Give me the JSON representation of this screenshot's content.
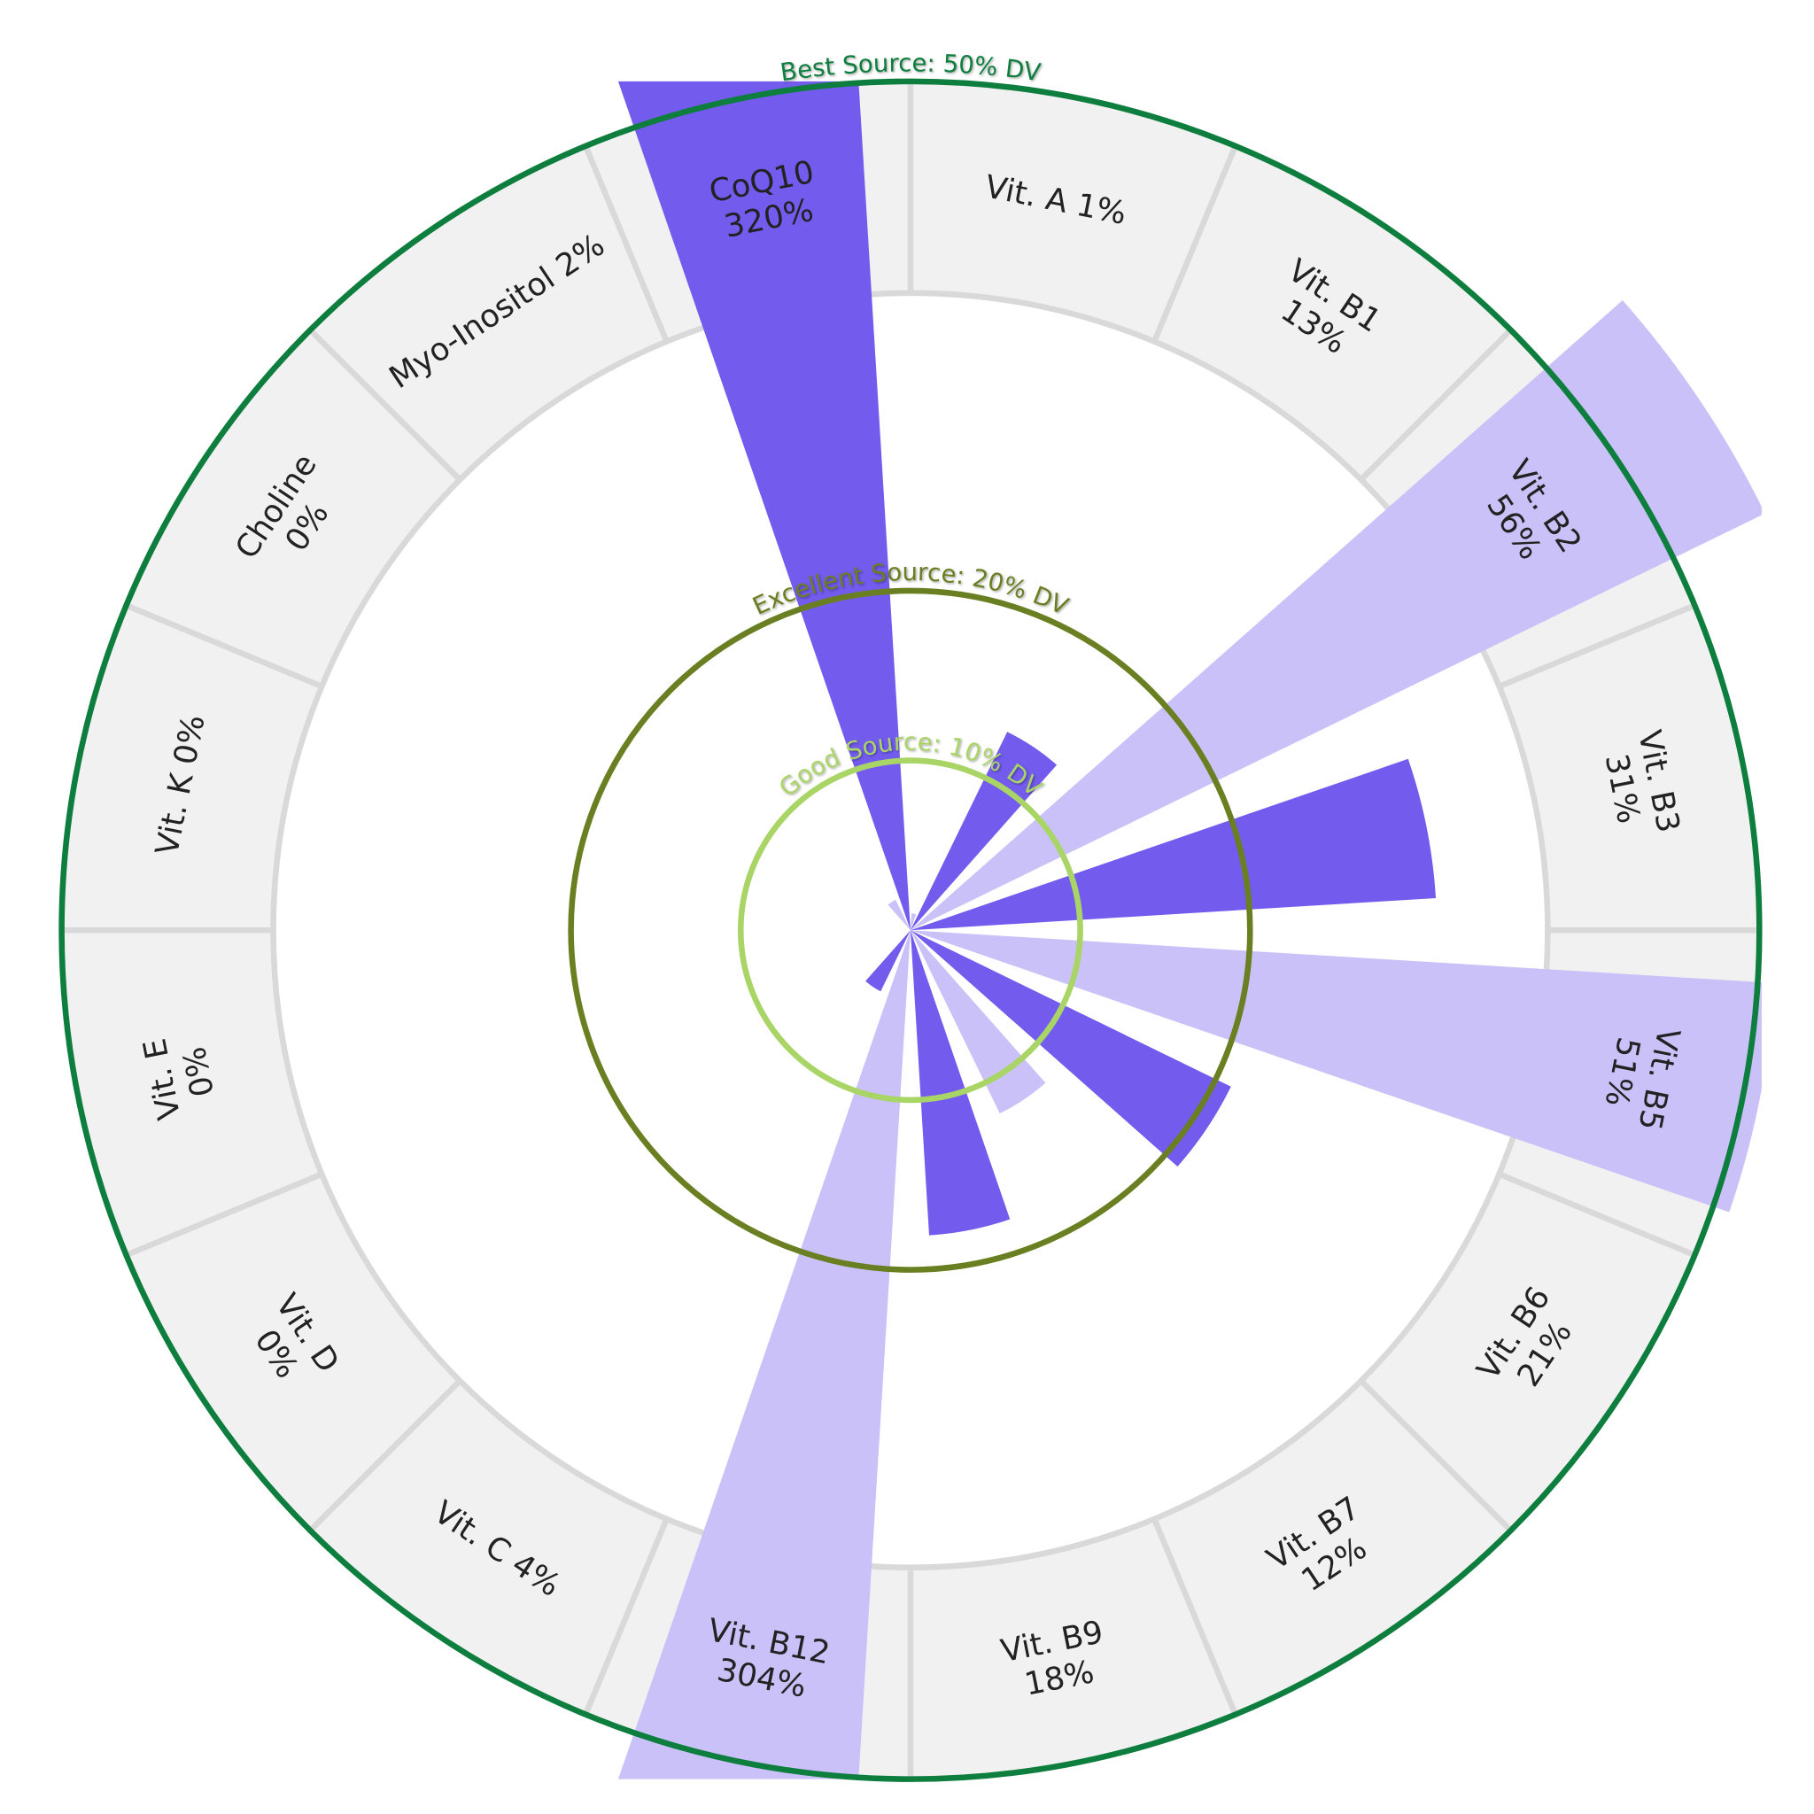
{
  "chart_data": {
    "type": "polar-bar",
    "unit": "% DV",
    "categories": [
      "Vit. A",
      "Vit. B1",
      "Vit. B2",
      "Vit. B3",
      "Vit. B5",
      "Vit. B6",
      "Vit. B7",
      "Vit. B9",
      "Vit. B12",
      "Vit. C",
      "Vit. D",
      "Vit. E",
      "Vit. K",
      "Choline",
      "Myo-Inositol",
      "CoQ10"
    ],
    "values": [
      1,
      13,
      56,
      31,
      51,
      21,
      12,
      18,
      304,
      4,
      0,
      0,
      0,
      0,
      2,
      320
    ],
    "labels": [
      [
        "Vit. A 1%"
      ],
      [
        "Vit. B1",
        "13%"
      ],
      [
        "Vit. B2",
        "56%"
      ],
      [
        "Vit. B3",
        "31%"
      ],
      [
        "Vit. B5",
        "51%"
      ],
      [
        "Vit. B6",
        "21%"
      ],
      [
        "Vit. B7",
        "12%"
      ],
      [
        "Vit. B9",
        "18%"
      ],
      [
        "Vit. B12",
        "304%"
      ],
      [
        "Vit. C 4%"
      ],
      [
        "Vit. D",
        "0%"
      ],
      [
        "Vit. E",
        "0%"
      ],
      [
        "Vit. K 0%"
      ],
      [
        "Choline",
        "0%"
      ],
      [
        "Myo-Inositol 2%"
      ],
      [
        "CoQ10",
        "320%"
      ]
    ],
    "reference_rings": [
      {
        "value": 10,
        "label": "Good Source: 10% DV",
        "color": "#a9d466"
      },
      {
        "value": 20,
        "label": "Excellent Source: 20% DV",
        "color": "#6a7f22"
      },
      {
        "value": 50,
        "label": "Best Source: 50% DV",
        "color": "#0e7e3e"
      }
    ],
    "colors": {
      "bar_dark": "#735bee",
      "bar_light": "#c9c1f8",
      "band": "#f1f1f1",
      "divider": "#d9d9d9"
    }
  }
}
